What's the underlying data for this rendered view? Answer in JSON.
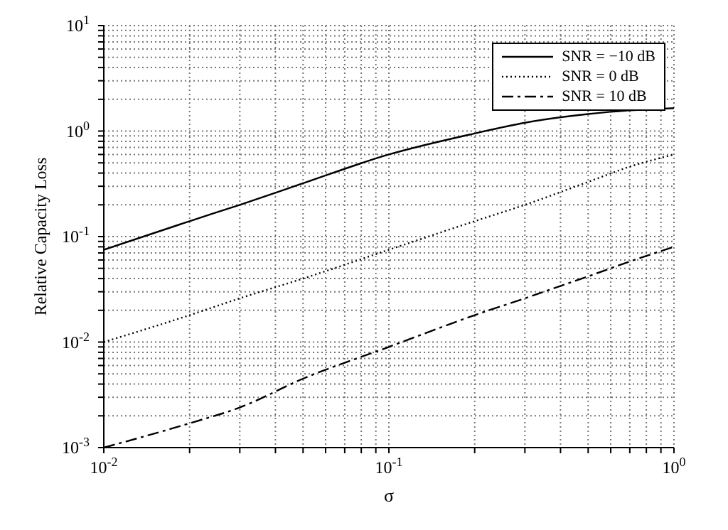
{
  "chart_data": {
    "type": "line",
    "xlabel": "σ",
    "ylabel": "Relative Capacity Loss",
    "log": "xy",
    "grid": true,
    "legend": "top right",
    "marker": "none",
    "x": [
      0.01,
      0.02,
      0.03,
      0.05,
      0.1,
      0.2,
      0.3,
      0.5,
      0.7,
      1
    ],
    "series": [
      {
        "name": "SNR = −10 dB",
        "color": "#000000",
        "line_style": "solid",
        "values": [
          0.075,
          0.14,
          0.2,
          0.32,
          0.6,
          0.95,
          1.2,
          1.45,
          1.57,
          1.65
        ]
      },
      {
        "name": "SNR = 0 dB",
        "color": "#000000",
        "line_style": "dotted",
        "values": [
          0.01,
          0.018,
          0.026,
          0.04,
          0.075,
          0.14,
          0.2,
          0.33,
          0.46,
          0.6
        ]
      },
      {
        "name": "SNR = 10 dB",
        "color": "#000000",
        "line_style": "dashdot",
        "values": [
          0.001,
          0.0017,
          0.0024,
          0.0045,
          0.009,
          0.018,
          0.026,
          0.042,
          0.058,
          0.08
        ]
      }
    ],
    "xlim": [
      0.01,
      1
    ],
    "xticks": [
      {
        "value": 0.01,
        "label": "10$^{-2}$"
      },
      {
        "value": 0.02,
        "label": null
      },
      {
        "value": 0.03,
        "label": null
      },
      {
        "value": 0.04,
        "label": null
      },
      {
        "value": 0.05,
        "label": null
      },
      {
        "value": 0.06,
        "label": null
      },
      {
        "value": 0.07,
        "label": null
      },
      {
        "value": 0.08,
        "label": null
      },
      {
        "value": 0.09,
        "label": null
      },
      {
        "value": 0.1,
        "label": "10$^{-1}$"
      },
      {
        "value": 0.2,
        "label": null
      },
      {
        "value": 0.3,
        "label": null
      },
      {
        "value": 0.4,
        "label": null
      },
      {
        "value": 0.5,
        "label": null
      },
      {
        "value": 0.6,
        "label": null
      },
      {
        "value": 0.7,
        "label": null
      },
      {
        "value": 0.8,
        "label": null
      },
      {
        "value": 0.9,
        "label": null
      },
      {
        "value": 1,
        "label": "10$^{0}$"
      }
    ],
    "ylim": [
      0.001,
      10
    ],
    "yticks": [
      {
        "value": 0.001,
        "label": "10$^{-3}$"
      },
      {
        "value": 0.002,
        "label": null
      },
      {
        "value": 0.003,
        "label": null
      },
      {
        "value": 0.004,
        "label": null
      },
      {
        "value": 0.005,
        "label": null
      },
      {
        "value": 0.006,
        "label": null
      },
      {
        "value": 0.007,
        "label": null
      },
      {
        "value": 0.008,
        "label": null
      },
      {
        "value": 0.009,
        "label": null
      },
      {
        "value": 0.01,
        "label": "10$^{-2}$"
      },
      {
        "value": 0.02,
        "label": null
      },
      {
        "value": 0.03,
        "label": null
      },
      {
        "value": 0.04,
        "label": null
      },
      {
        "value": 0.05,
        "label": null
      },
      {
        "value": 0.06,
        "label": null
      },
      {
        "value": 0.07,
        "label": null
      },
      {
        "value": 0.08,
        "label": null
      },
      {
        "value": 0.09,
        "label": null
      },
      {
        "value": 0.1,
        "label": "10$^{-1}$"
      },
      {
        "value": 0.2,
        "label": null
      },
      {
        "value": 0.3,
        "label": null
      },
      {
        "value": 0.4,
        "label": null
      },
      {
        "value": 0.5,
        "label": null
      },
      {
        "value": 0.6,
        "label": null
      },
      {
        "value": 0.7,
        "label": null
      },
      {
        "value": 0.8,
        "label": null
      },
      {
        "value": 0.9,
        "label": null
      },
      {
        "value": 1,
        "label": "10$^{0}$"
      },
      {
        "value": 2,
        "label": null
      },
      {
        "value": 3,
        "label": null
      },
      {
        "value": 4,
        "label": null
      },
      {
        "value": 5,
        "label": null
      },
      {
        "value": 6,
        "label": null
      },
      {
        "value": 7,
        "label": null
      },
      {
        "value": 8,
        "label": null
      },
      {
        "value": 9,
        "label": null
      },
      {
        "value": 10,
        "label": "10$^{1}$"
      }
    ]
  }
}
